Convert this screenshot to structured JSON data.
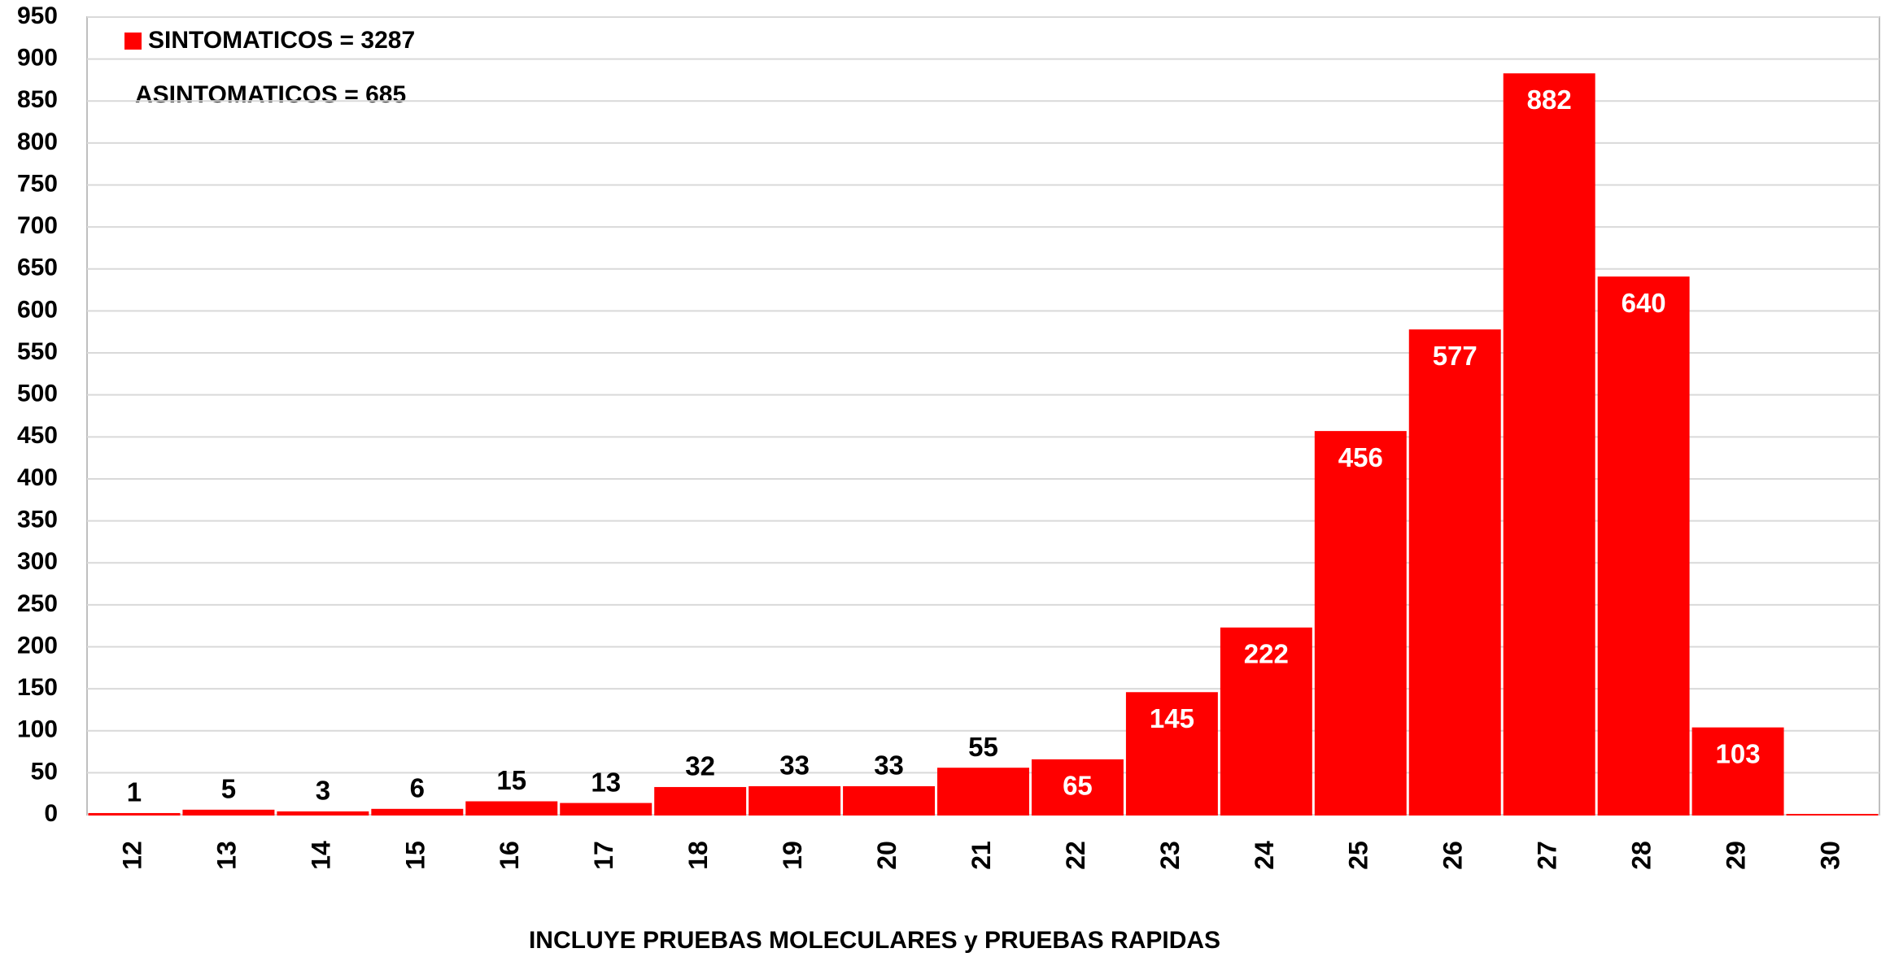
{
  "chart_data": {
    "type": "bar",
    "legend": "SINTOMATICOS = 3287",
    "annotation": "ASINTOMATICOS = 685",
    "x_label": "INCLUYE PRUEBAS MOLECULARES y PRUEBAS RAPIDAS",
    "categories": [
      "12",
      "13",
      "14",
      "15",
      "16",
      "17",
      "18",
      "19",
      "20",
      "21",
      "22",
      "23",
      "24",
      "25",
      "26",
      "27",
      "28",
      "29",
      "30"
    ],
    "values": [
      1,
      5,
      3,
      6,
      15,
      13,
      32,
      33,
      33,
      55,
      65,
      145,
      222,
      456,
      577,
      882,
      640,
      103,
      0
    ],
    "value_labels": [
      "1",
      "5",
      "3",
      "6",
      "15",
      "13",
      "32",
      "33",
      "33",
      "55",
      "65",
      "145",
      "222",
      "456",
      "577",
      "882",
      "640",
      "103",
      null
    ],
    "color": "#ff0000",
    "ylim": [
      0,
      950
    ],
    "yticks": [
      0,
      50,
      100,
      150,
      200,
      250,
      300,
      350,
      400,
      450,
      500,
      550,
      600,
      650,
      700,
      750,
      800,
      850,
      900,
      950
    ],
    "grid": true
  }
}
